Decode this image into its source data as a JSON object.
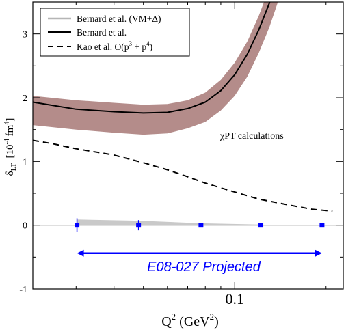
{
  "chart_data": {
    "type": "line",
    "xlabel": "Q",
    "xlabel_exp": "2",
    "xlabel_unit_prefix": " (GeV",
    "xlabel_unit_exp": "2",
    "xlabel_unit_suffix": ")",
    "ylabel": "δ",
    "ylabel_sub": "LT",
    "ylabel_unit_prefix": "[10",
    "ylabel_unit_exp": "-4",
    "ylabel_unit_suffix": " fm",
    "ylabel_unit_exp2": "4",
    "ylabel_unit_close": "]",
    "x_scale": "log",
    "xlim": [
      0.0216,
      0.228
    ],
    "ylim": [
      -1,
      3.5
    ],
    "x_tick_labels": [
      {
        "value": 0.1,
        "label": "0.1"
      }
    ],
    "y_tick_labels": [
      {
        "value": -1,
        "label": "-1"
      },
      {
        "value": 0,
        "label": "0"
      },
      {
        "value": 1,
        "label": "1"
      },
      {
        "value": 2,
        "label": "2"
      },
      {
        "value": 3,
        "label": "3"
      }
    ],
    "legend": {
      "placement": "top-left",
      "entries": [
        {
          "label": "Bernard et al. (VM+Δ)",
          "style": "band",
          "color": "#b5b5b5"
        },
        {
          "label": "Bernard et al.",
          "style": "solid",
          "color": "#000000"
        },
        {
          "label_prefix": "Kao et al. O(p",
          "label_exp1": "3",
          "label_mid": " + p",
          "label_exp2": "4",
          "label_suffix": ")",
          "style": "dashed",
          "color": "#000000"
        }
      ]
    },
    "annotations": {
      "chipt_symbol": "χ",
      "chipt_text": "PT calculations",
      "projected": "E08-027 Projected"
    },
    "band": {
      "name": "Bernard et al. (VM+Δ)",
      "color": "#b48c8a",
      "x": [
        0.0216,
        0.03,
        0.04,
        0.05,
        0.06,
        0.07,
        0.08,
        0.09,
        0.1,
        0.11,
        0.12,
        0.13,
        0.14,
        0.15,
        0.16
      ],
      "lower": [
        1.57,
        1.5,
        1.45,
        1.42,
        1.44,
        1.52,
        1.62,
        1.8,
        2.03,
        2.33,
        2.7,
        3.1,
        3.55,
        4.0,
        4.5
      ],
      "upper": [
        2.03,
        1.96,
        1.92,
        1.89,
        1.9,
        1.96,
        2.08,
        2.28,
        2.55,
        2.88,
        3.28,
        3.72,
        4.2,
        4.7,
        5.2
      ]
    },
    "series": [
      {
        "name": "Bernard et al.",
        "style": "solid",
        "color": "#000000",
        "x": [
          0.0216,
          0.03,
          0.04,
          0.05,
          0.06,
          0.07,
          0.08,
          0.09,
          0.1,
          0.11,
          0.12,
          0.13,
          0.14,
          0.15
        ],
        "values": [
          1.93,
          1.82,
          1.78,
          1.76,
          1.77,
          1.83,
          1.93,
          2.11,
          2.36,
          2.68,
          3.06,
          3.48,
          3.95,
          4.5
        ]
      },
      {
        "name": "Kao et al. O(p3 + p4)",
        "style": "dashed",
        "color": "#000000",
        "x": [
          0.0216,
          0.025,
          0.03,
          0.04,
          0.05,
          0.06,
          0.07,
          0.08,
          0.1,
          0.12,
          0.15,
          0.18,
          0.21
        ],
        "values": [
          1.33,
          1.28,
          1.2,
          1.1,
          0.98,
          0.87,
          0.76,
          0.66,
          0.52,
          0.41,
          0.32,
          0.25,
          0.22
        ]
      }
    ],
    "projected_points": {
      "name": "E08-027 Projected",
      "color": "#0000ff",
      "x": [
        0.0302,
        0.0482,
        0.0774,
        0.122,
        0.194
      ],
      "values": [
        0,
        0,
        0,
        0,
        0
      ],
      "yerr": [
        0.11,
        0.08,
        0.03,
        0.02,
        0.01
      ],
      "systematic_band": {
        "color": "#c9c9c9",
        "x": [
          0.0302,
          0.0482,
          0.0774,
          0.122
        ],
        "upper": [
          0.09,
          0.07,
          0.03,
          0.01
        ]
      },
      "arrow_x_range": [
        0.0302,
        0.194
      ],
      "arrow_y": -0.44
    }
  }
}
